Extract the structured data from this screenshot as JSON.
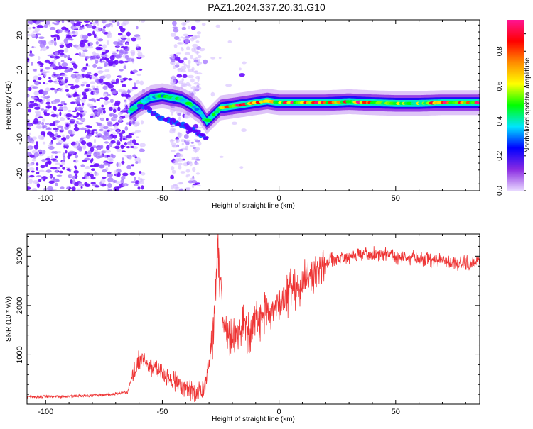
{
  "title": "PAZ1.2024.337.20.31.G10",
  "chart_data": [
    {
      "type": "heatmap",
      "xlabel": "Height of straight line (km)",
      "ylabel": "Frequency (Hz)",
      "xlim": [
        -108,
        86
      ],
      "ylim": [
        -25,
        24.5
      ],
      "xticks": [
        -100,
        -50,
        0,
        50
      ],
      "xtick_labels": [
        "-100",
        "-50",
        "0",
        "50"
      ],
      "yticks": [
        -20,
        -10,
        0,
        10,
        20
      ],
      "ytick_labels": [
        "-20",
        "-10",
        "0",
        "10",
        "20"
      ],
      "grid": false,
      "colorbar": {
        "label": "Normalized spectral amplitude",
        "range": [
          0,
          0.98
        ],
        "ticks": [
          0,
          0.2,
          0.4,
          0.6,
          0.8
        ],
        "tick_labels": [
          "0.0",
          "0.2",
          "0.4",
          "0.6",
          "0.8"
        ],
        "colormap": [
          "#e8d8ff",
          "#8a2be2",
          "#0000ff",
          "#00e5ff",
          "#00ff00",
          "#ffff00",
          "#ff8c00",
          "#ff0000",
          "#ff1493"
        ]
      },
      "ridge": {
        "x": [
          -64,
          -60,
          -55,
          -50,
          -46,
          -42,
          -38,
          -34,
          -31,
          -28,
          -25,
          -20,
          -15,
          -10,
          -5,
          0,
          10,
          20,
          30,
          40,
          50,
          60,
          70,
          86
        ],
        "frequency": [
          -2,
          0,
          2,
          2.5,
          2,
          1.5,
          0,
          -2,
          -5,
          -3,
          -1,
          -0.5,
          0,
          0.5,
          1,
          0.5,
          0.5,
          0.5,
          0.8,
          0.5,
          0.3,
          0.3,
          0.5,
          0.5
        ]
      },
      "secondary_ridge": {
        "x": [
          -60,
          -55,
          -50,
          -45,
          -40,
          -35,
          -31
        ],
        "frequency": [
          0,
          -2,
          -4,
          -5,
          -6.5,
          -8,
          -9.5
        ]
      }
    },
    {
      "type": "line",
      "xlabel": "Height of straight line (km)",
      "ylabel": "SNR (10 * v/v)",
      "xlim": [
        -108,
        86
      ],
      "ylim": [
        0,
        3450
      ],
      "xticks": [
        -100,
        -50,
        0,
        50
      ],
      "xtick_labels": [
        "-100",
        "-50",
        "0",
        "50"
      ],
      "yticks": [
        1000,
        2000,
        3000
      ],
      "ytick_labels": [
        "1000",
        "2000",
        "3000"
      ],
      "grid": false,
      "series": [
        {
          "color": "#ee3333",
          "x": [
            -108,
            -90,
            -75,
            -65,
            -62,
            -60,
            -57,
            -55,
            -52,
            -48,
            -44,
            -40,
            -36,
            -32,
            -30,
            -28,
            -27,
            -26,
            -25,
            -24,
            -22,
            -20,
            -18,
            -15,
            -12,
            -10,
            -7,
            -5,
            -2,
            0,
            5,
            10,
            15,
            20,
            25,
            30,
            40,
            50,
            60,
            70,
            80,
            86
          ],
          "y": [
            150,
            160,
            180,
            240,
            700,
            850,
            900,
            780,
            750,
            550,
            450,
            280,
            250,
            300,
            800,
            1500,
            2600,
            3000,
            2500,
            1800,
            1300,
            1400,
            1350,
            1600,
            1400,
            1700,
            1750,
            1800,
            1900,
            2000,
            2300,
            2500,
            2700,
            2850,
            2950,
            3000,
            3050,
            3000,
            2950,
            2900,
            2850,
            2900
          ]
        }
      ]
    }
  ]
}
